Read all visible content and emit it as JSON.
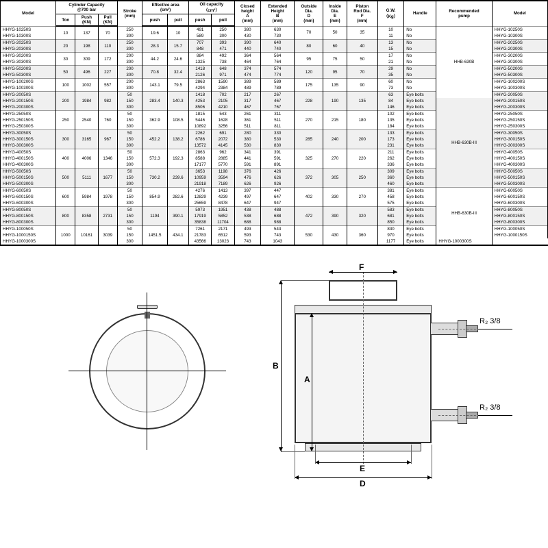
{
  "headers": {
    "model": "Model",
    "capacity": "Cylinder Capacity\n@700 bar",
    "ton": "Ton",
    "push_kn": "Push\n(KN)",
    "pull_kn": "Pull\n(KN)",
    "stroke": "Stroke\n(mm)",
    "eff_area": "Effective area\n(cm²)",
    "push": "push",
    "pull": "pull",
    "oil_cap": "Oil capacity\n（cm³）",
    "closed_h": "Closed\nheight\nA\n(mm)",
    "ext_h": "Extended\nHeight\nB\n(mm)",
    "out_dia": "Outside\nDia.\nD\n(mm)",
    "in_dia": "Inside\nDia.\nE\n(mm)",
    "piston": "Piston\nRod Dia.\nF\n(mm)",
    "gw": "G.W.\n（Kg）",
    "handle": "Handle",
    "pump": "Recommended\npump",
    "model2": "Model"
  },
  "pumps": [
    "HHB-630B",
    "HHB-630B-III",
    "HHB-630B-III"
  ],
  "diagram": {
    "f": "F",
    "b": "B",
    "a": "A",
    "e": "E",
    "d": "D",
    "r1": "R₂ 3/8",
    "r2": "R₂ 3/8"
  },
  "groups": [
    {
      "zebra": false,
      "ton": "10",
      "push": "137",
      "pull": "70",
      "ea_push": "19.6",
      "ea_pull": "10",
      "od": "70",
      "id": "50",
      "pr": "35",
      "rows": [
        [
          "HHYG-10250S",
          "250",
          "491",
          "250",
          "380",
          "630",
          "10",
          "No"
        ],
        [
          "HHYG-10300S",
          "300",
          "589",
          "300",
          "430",
          "730",
          "11",
          "No"
        ]
      ]
    },
    {
      "zebra": true,
      "ton": "20",
      "push": "198",
      "pull": "110",
      "ea_push": "28.3",
      "ea_pull": "15.7",
      "od": "80",
      "id": "60",
      "pr": "40",
      "rows": [
        [
          "HHYG-20250S",
          "250",
          "707",
          "393",
          "390",
          "640",
          "13",
          "No"
        ],
        [
          "HHYG-20300S",
          "300",
          "848",
          "471",
          "440",
          "740",
          "15",
          "No"
        ]
      ]
    },
    {
      "zebra": false,
      "ton": "30",
      "push": "309",
      "pull": "172",
      "ea_push": "44.2",
      "ea_pull": "24.6",
      "od": "95",
      "id": "75",
      "pr": "50",
      "rows": [
        [
          "HHYG-30200S",
          "200",
          "884",
          "492",
          "364",
          "564",
          "17",
          "No"
        ],
        [
          "HHYG-30300S",
          "300",
          "1325",
          "738",
          "464",
          "764",
          "21",
          "No"
        ]
      ]
    },
    {
      "zebra": true,
      "ton": "50",
      "push": "496",
      "pull": "227",
      "ea_push": "70.8",
      "ea_pull": "32.4",
      "od": "120",
      "id": "95",
      "pr": "70",
      "rows": [
        [
          "HHYG-50200S",
          "200",
          "1418",
          "648",
          "374",
          "574",
          "29",
          "No"
        ],
        [
          "HHYG-50300S",
          "300",
          "2126",
          "971",
          "474",
          "774",
          "35",
          "No"
        ]
      ]
    },
    {
      "zebra": false,
      "ton": "100",
      "push": "1002",
      "pull": "557",
      "ea_push": "143.1",
      "ea_pull": "79.5",
      "od": "175",
      "id": "135",
      "pr": "90",
      "rows": [
        [
          "HHYG-100200S",
          "200",
          "2863",
          "1590",
          "389",
          "589",
          "60",
          "No"
        ],
        [
          "HHYG-100300S",
          "300",
          "4294",
          "2384",
          "489",
          "789",
          "73",
          "No"
        ]
      ]
    },
    {
      "zebra": true,
      "ton": "200",
      "push": "1984",
      "pull": "982",
      "ea_push": "283.4",
      "ea_pull": "140.3",
      "od": "228",
      "id": "190",
      "pr": "135",
      "rows": [
        [
          "HHYG-20050S",
          "50",
          "1418",
          "702",
          "217",
          "267",
          "63",
          "Eye bolts"
        ],
        [
          "HHYG-200150S",
          "150",
          "4253",
          "2105",
          "317",
          "467",
          "84",
          "Eye bolts"
        ],
        [
          "HHYG-200300S",
          "300",
          "8506",
          "4210",
          "467",
          "767",
          "146",
          "Eye bolts"
        ]
      ]
    },
    {
      "zebra": false,
      "ton": "250",
      "push": "2540",
      "pull": "760",
      "ea_push": "362.9",
      "ea_pull": "108.5",
      "od": "270",
      "id": "215",
      "pr": "180",
      "rows": [
        [
          "HHYG-25050S",
          "50",
          "1815",
          "543",
          "261",
          "311",
          "102",
          "Eye bolts"
        ],
        [
          "HHYG-250150S",
          "150",
          "5446",
          "1628",
          "361",
          "511",
          "135",
          "Eye bolts"
        ],
        [
          "HHYG-250300S",
          "300",
          "10892",
          "3256",
          "511",
          "811",
          "184",
          "Eye bolts"
        ]
      ]
    },
    {
      "zebra": true,
      "ton": "300",
      "push": "3165",
      "pull": "967",
      "ea_push": "452.2",
      "ea_pull": "138.2",
      "od": "285",
      "id": "240",
      "pr": "200",
      "rows": [
        [
          "HHYG-30050S",
          "50",
          "2262",
          "691",
          "280",
          "330",
          "133",
          "Eye bolts"
        ],
        [
          "HHYG-300150S",
          "150",
          "6786",
          "2072",
          "380",
          "530",
          "173",
          "Eye bolts"
        ],
        [
          "HHYG-300300S",
          "300",
          "13572",
          "4145",
          "530",
          "830",
          "231",
          "Eye bolts"
        ]
      ]
    },
    {
      "zebra": false,
      "ton": "400",
      "push": "4006",
      "pull": "1346",
      "ea_push": "572.3",
      "ea_pull": "192.3",
      "od": "325",
      "id": "270",
      "pr": "220",
      "rows": [
        [
          "HHYG-40050S",
          "50",
          "2863",
          "962",
          "341",
          "391",
          "211",
          "Eye bolts"
        ],
        [
          "HHYG-400150S",
          "150",
          "8588",
          "2885",
          "441",
          "591",
          "262",
          "Eye bolts"
        ],
        [
          "HHYG-400300S",
          "300",
          "17177",
          "5770",
          "591",
          "891",
          "336",
          "Eye bolts"
        ]
      ]
    },
    {
      "zebra": true,
      "ton": "500",
      "push": "5111",
      "pull": "1677",
      "ea_push": "730.2",
      "ea_pull": "239.6",
      "od": "372",
      "id": "305",
      "pr": "250",
      "rows": [
        [
          "HHYG-50050S",
          "50",
          "3653",
          "1198",
          "376",
          "426",
          "309",
          "Eye bolts"
        ],
        [
          "HHYG-500150S",
          "150",
          "10959",
          "3594",
          "476",
          "626",
          "360",
          "Eye bolts"
        ],
        [
          "HHYG-500300S",
          "300",
          "21918",
          "7189",
          "626",
          "926",
          "460",
          "Eye bolts"
        ]
      ]
    },
    {
      "zebra": false,
      "ton": "600",
      "push": "5984",
      "pull": "1978",
      "ea_push": "854.9",
      "ea_pull": "282.6",
      "od": "402",
      "id": "330",
      "pr": "270",
      "rows": [
        [
          "HHYG-60050S",
          "50",
          "4276",
          "1413",
          "397",
          "447",
          "381",
          "Eye bolts"
        ],
        [
          "HHYG-600150S",
          "150",
          "12829",
          "4239",
          "497",
          "647",
          "458",
          "Eye bolts"
        ],
        [
          "HHYG-600300S",
          "300",
          "25659",
          "8478",
          "647",
          "947",
          "575",
          "Eye bolts"
        ]
      ]
    },
    {
      "zebra": true,
      "ton": "800",
      "push": "8358",
      "pull": "2731",
      "ea_push": "1194",
      "ea_pull": "390.1",
      "od": "472",
      "id": "390",
      "pr": "320",
      "rows": [
        [
          "HHYG-80050S",
          "50",
          "5973",
          "1951",
          "438",
          "488",
          "583",
          "Eye bolts"
        ],
        [
          "HHYG-800150S",
          "150",
          "17919",
          "5852",
          "538",
          "688",
          "681",
          "Eye bolts"
        ],
        [
          "HHYG-800300S",
          "300",
          "35838",
          "11704",
          "688",
          "988",
          "850",
          "Eye bolts"
        ]
      ]
    },
    {
      "zebra": false,
      "ton": "1000",
      "push": "10161",
      "pull": "3039",
      "ea_push": "1451.5",
      "ea_pull": "434.1",
      "od": "530",
      "id": "430",
      "pr": "360",
      "rows": [
        [
          "HHYG-100050S",
          "50",
          "7261",
          "2171",
          "493",
          "543",
          "830",
          "Eye bolts"
        ],
        [
          "HHYG-1000150S",
          "150",
          "21783",
          "6512",
          "593",
          "743",
          "970",
          "Eye bolts"
        ],
        [
          "HHYG-1000300S",
          "300",
          "43566",
          "13023",
          "743",
          "1043",
          "1177",
          "Eye bolts"
        ]
      ]
    }
  ]
}
